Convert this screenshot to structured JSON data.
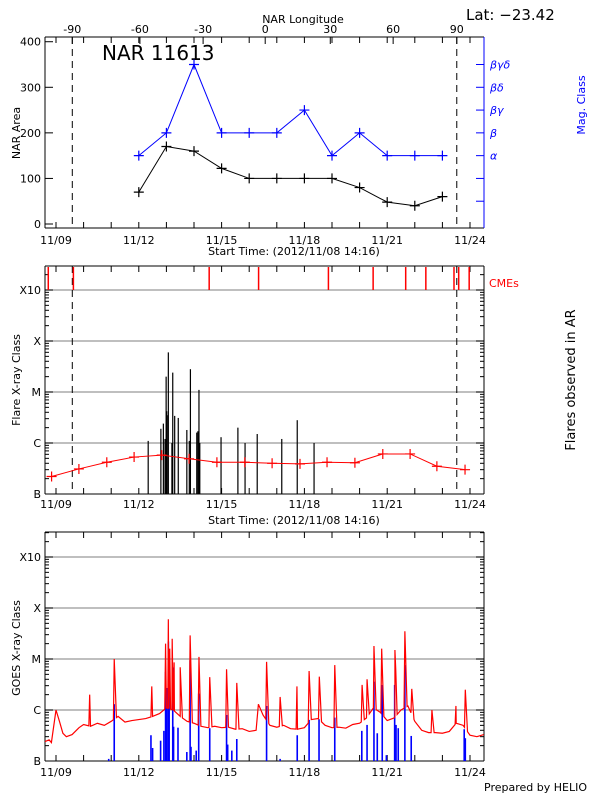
{
  "header": {
    "lat_label": "Lat: −23.42",
    "top_axis_title": "NAR Longitude",
    "region_title": "NAR 11613",
    "footer": "Prepared by HELIO"
  },
  "colors": {
    "area": "#000000",
    "mag_class": "#0000ff",
    "cme": "#ff0000",
    "flare_mean": "#ff0000",
    "flare_bars": "#000000",
    "goes_long": "#ff0000",
    "goes_short": "#0000ff",
    "grid": "#999999"
  },
  "chart_data": [
    {
      "type": "line",
      "panel": "area",
      "title": "NAR 11613",
      "xlabel": "Start Time: (2012/11/08 14:16)",
      "ylabel": "NAR Area",
      "y2label": "Mag. Class",
      "x_top_label": "NAR Longitude",
      "ylim": [
        0,
        400
      ],
      "xlim": [
        "11/08 14:16",
        "11/24 12:00"
      ],
      "yticks": [
        0,
        100,
        200,
        300,
        400
      ],
      "xticks": [
        "11/09",
        "11/12",
        "11/15",
        "11/18",
        "11/21",
        "11/24"
      ],
      "top_ticks": [
        {
          "label": "-90",
          "date": "11/09 14:10"
        },
        {
          "label": "-60",
          "date": "11/12 00:58"
        },
        {
          "label": "-30",
          "date": "11/14 07:55"
        },
        {
          "label": "0",
          "date": "11/16 13:55"
        },
        {
          "label": "30",
          "date": "11/18 22:30"
        },
        {
          "label": "60",
          "date": "11/21 05:10"
        },
        {
          "label": "90",
          "date": "11/23 12:30"
        }
      ],
      "limb_lines": [
        "11/09 14:10",
        "11/23 12:30"
      ],
      "mag_class_axis": [
        {
          "label": "",
          "at": 50
        },
        {
          "label": "",
          "at": 100
        },
        {
          "label": "α",
          "at": 150
        },
        {
          "label": "β",
          "at": 200
        },
        {
          "label": "βγ",
          "at": 250
        },
        {
          "label": "βδ",
          "at": 300
        },
        {
          "label": "βγδ",
          "at": 350
        }
      ],
      "dates": [
        "11/12 00:00",
        "11/13 00:00",
        "11/14 00:00",
        "11/15 00:00",
        "11/16 00:00",
        "11/17 00:00",
        "11/18 00:00",
        "11/19 00:00",
        "11/20 00:00",
        "11/21 00:00",
        "11/22 00:00",
        "11/23 00:00"
      ],
      "series": [
        {
          "name": "NAR Area",
          "values": [
            70,
            170,
            160,
            122,
            100,
            100,
            100,
            100,
            80,
            48,
            40,
            60
          ]
        },
        {
          "name": "Mag. Class",
          "values": [
            "α",
            "β",
            "βγδ",
            "β",
            "β",
            "β",
            "βγ",
            "α",
            "β",
            "α",
            "α",
            "α"
          ]
        }
      ]
    },
    {
      "type": "bar",
      "panel": "flares",
      "xlabel": "Start Time: (2012/11/08 14:16)",
      "ylabel": "Flare X-ray Class",
      "y2label": "Flares observed in AR",
      "cme_label": "CMEs",
      "yscale": "log",
      "ylim": [
        "B1.0",
        "X10+"
      ],
      "yticks": [
        "B",
        "C",
        "M",
        "X",
        "X10"
      ],
      "xticks": [
        "11/09",
        "11/12",
        "11/15",
        "11/18",
        "11/21",
        "11/24"
      ],
      "grid": true,
      "limb_lines": [
        "11/09 14:10",
        "11/23 12:30"
      ],
      "cmes": [
        "11/08 17:17",
        "11/09 15:07",
        "11/14 13:12",
        "11/16 08:10",
        "11/18 20:53",
        "11/20 11:46",
        "11/21 16:05",
        "11/22 09:36",
        "11/23 10:05",
        "11/23 14:10",
        "11/23 23:17"
      ],
      "flares": [
        [
          "11/12 08:10",
          "C1.1"
        ],
        [
          "11/12 19:12",
          "C1.9"
        ],
        [
          "11/12 21:22",
          "C2.4"
        ],
        [
          "11/12 22:48",
          "C1.2"
        ],
        [
          "11/12 23:46",
          "M2.0"
        ],
        [
          "11/13 00:14",
          "C4.2"
        ],
        [
          "11/13 01:12",
          "C3.5"
        ],
        [
          "11/13 01:41",
          "M6.0"
        ],
        [
          "11/13 04:48",
          "C1.0"
        ],
        [
          "11/13 05:31",
          "M2.4"
        ],
        [
          "11/13 07:12",
          "C3.4"
        ],
        [
          "11/13 10:19",
          "C3.1"
        ],
        [
          "11/13 17:46",
          "C1.8"
        ],
        [
          "11/13 19:55",
          "C1.1"
        ],
        [
          "11/13 20:53",
          "M2.8"
        ],
        [
          "11/14 02:24",
          "C1.6"
        ],
        [
          "11/14 03:22",
          "C1.7"
        ],
        [
          "11/14 04:19",
          "M1.1"
        ],
        [
          "11/14 05:02",
          "C1.0"
        ],
        [
          "11/14 23:31",
          "C1.3"
        ],
        [
          "11/14 23:46",
          "B1.2"
        ],
        [
          "11/15 14:10",
          "C2.0"
        ],
        [
          "11/15 20:24",
          "C1.0"
        ],
        [
          "11/16 06:58",
          "C1.5"
        ],
        [
          "11/17 04:19",
          "C1.2"
        ],
        [
          "11/17 17:46",
          "C2.8"
        ],
        [
          "11/18 08:24",
          "C1.0"
        ]
      ],
      "daily_mean": [
        [
          "11/08 20:10",
          "B2.2"
        ],
        [
          "11/09 19:55",
          "B3.1"
        ],
        [
          "11/10 20:10",
          "B4.2"
        ],
        [
          "11/11 19:55",
          "B5.3"
        ],
        [
          "11/12 19:55",
          "B5.8"
        ],
        [
          "11/13 19:41",
          "B4.9"
        ],
        [
          "11/14 19:55",
          "B4.2"
        ],
        [
          "11/15 20:10",
          "B4.2"
        ],
        [
          "11/16 19:55",
          "B4.0"
        ],
        [
          "11/17 20:10",
          "B3.9"
        ],
        [
          "11/18 19:41",
          "B4.2"
        ],
        [
          "11/19 19:55",
          "B4.1"
        ],
        [
          "11/20 20:10",
          "B6.1"
        ],
        [
          "11/21 19:55",
          "B6.1"
        ],
        [
          "11/22 19:12",
          "B3.5"
        ],
        [
          "11/23 19:41",
          "B3.0"
        ]
      ]
    },
    {
      "type": "line",
      "panel": "goes",
      "ylabel": "GOES X-ray Class",
      "yscale": "log",
      "ylim": [
        "B1.0",
        "X10+"
      ],
      "yticks": [
        "B",
        "C",
        "M",
        "X",
        "X10"
      ],
      "xticks": [
        "11/09",
        "11/12",
        "11/15",
        "11/18",
        "11/21",
        "11/24"
      ],
      "grid": true,
      "long_channel_background": [
        [
          "11/08 14:16",
          "B2.4"
        ],
        [
          "11/08 18:00",
          "B2.6"
        ],
        [
          "11/08 20:00",
          "B2.3"
        ],
        [
          "11/09 00:00",
          "C1.0"
        ],
        [
          "11/09 03:00",
          "B6.0"
        ],
        [
          "11/09 06:00",
          "B3.5"
        ],
        [
          "11/09 09:00",
          "B3.0"
        ],
        [
          "11/09 14:00",
          "B3.3"
        ],
        [
          "11/09 20:00",
          "B4.5"
        ],
        [
          "11/10 00:00",
          "B5.2"
        ],
        [
          "11/10 06:00",
          "B4.8"
        ],
        [
          "11/10 12:00",
          "B5.5"
        ],
        [
          "11/10 18:00",
          "B5.0"
        ],
        [
          "11/11 00:00",
          "B6.0"
        ],
        [
          "11/11 06:00",
          "B7.5"
        ],
        [
          "11/11 12:00",
          "B5.8"
        ],
        [
          "11/11 18:00",
          "B6.2"
        ],
        [
          "11/12 00:00",
          "B6.5"
        ],
        [
          "11/12 06:00",
          "B6.8"
        ],
        [
          "11/12 12:00",
          "B7.5"
        ],
        [
          "11/12 18:00",
          "B8.5"
        ],
        [
          "11/13 00:00",
          "C1.1"
        ],
        [
          "11/13 06:00",
          "C1.0"
        ],
        [
          "11/13 12:00",
          "B7.5"
        ],
        [
          "11/13 18:00",
          "B6.0"
        ],
        [
          "11/14 00:00",
          "B5.5"
        ],
        [
          "11/14 06:00",
          "B4.8"
        ],
        [
          "11/14 12:00",
          "B4.5"
        ],
        [
          "11/14 18:00",
          "B4.8"
        ],
        [
          "11/15 00:00",
          "B4.5"
        ],
        [
          "11/15 06:00",
          "B4.6"
        ],
        [
          "11/15 12:00",
          "B4.2"
        ],
        [
          "11/15 18:00",
          "B4.3"
        ],
        [
          "11/16 00:00",
          "B3.8"
        ],
        [
          "11/16 06:00",
          "B4.0"
        ],
        [
          "11/16 08:00",
          "C1.3"
        ],
        [
          "11/16 12:00",
          "B8.0"
        ],
        [
          "11/16 18:00",
          "B5.0"
        ],
        [
          "11/17 00:00",
          "B4.6"
        ],
        [
          "11/17 06:00",
          "B5.0"
        ],
        [
          "11/17 12:00",
          "B4.3"
        ],
        [
          "11/17 18:00",
          "B4.2"
        ],
        [
          "11/18 00:00",
          "B4.5"
        ],
        [
          "11/18 06:00",
          "B6.5"
        ],
        [
          "11/18 12:00",
          "B6.8"
        ],
        [
          "11/18 18:00",
          "B5.0"
        ],
        [
          "11/19 00:00",
          "B4.5"
        ],
        [
          "11/19 06:00",
          "B4.6"
        ],
        [
          "11/19 12:00",
          "B4.4"
        ],
        [
          "11/19 18:00",
          "B5.2"
        ],
        [
          "11/20 00:00",
          "B5.5"
        ],
        [
          "11/20 06:00",
          "B7.0"
        ],
        [
          "11/20 12:00",
          "C1.1"
        ],
        [
          "11/20 18:00",
          "B9.0"
        ],
        [
          "11/21 00:00",
          "B6.2"
        ],
        [
          "11/21 06:00",
          "B7.0"
        ],
        [
          "11/21 12:00",
          "C1.0"
        ],
        [
          "11/21 18:00",
          "C1.2"
        ],
        [
          "11/22 00:00",
          "B6.0"
        ],
        [
          "11/22 06:00",
          "B4.0"
        ],
        [
          "11/22 12:00",
          "B3.6"
        ],
        [
          "11/22 18:00",
          "B3.6"
        ],
        [
          "11/23 00:00",
          "B3.5"
        ],
        [
          "11/23 06:00",
          "B3.8"
        ],
        [
          "11/23 12:00",
          "B5.5"
        ],
        [
          "11/23 18:00",
          "B5.0"
        ],
        [
          "11/24 00:00",
          "B3.2"
        ],
        [
          "11/24 06:00",
          "B3.0"
        ],
        [
          "11/24 12:00",
          "B3.3"
        ]
      ],
      "long_channel_peaks": [
        [
          "11/10 05:17",
          "C2.0"
        ],
        [
          "11/11 02:38",
          "M1.0"
        ],
        [
          "11/12 11:17",
          "C2.9"
        ],
        [
          "11/12 23:17",
          "M2.0"
        ],
        [
          "11/13 01:41",
          "M6.0"
        ],
        [
          "11/13 02:53",
          "M1.6"
        ],
        [
          "11/13 05:02",
          "M2.5"
        ],
        [
          "11/13 06:43",
          "C8.6"
        ],
        [
          "11/13 12:00",
          "C6.9"
        ],
        [
          "11/13 20:38",
          "M2.9"
        ],
        [
          "11/14 04:19",
          "M1.1"
        ],
        [
          "11/14 13:41",
          "C4.4"
        ],
        [
          "11/15 04:19",
          "C6.3"
        ],
        [
          "11/15 13:12",
          "C3.4"
        ],
        [
          "11/16 15:07",
          "C8.8"
        ],
        [
          "11/17 02:53",
          "C1.8"
        ],
        [
          "11/17 17:31",
          "C2.9"
        ],
        [
          "11/18 04:05",
          "C5.8"
        ],
        [
          "11/18 12:58",
          "C4.5"
        ],
        [
          "11/19 02:24",
          "C7.6"
        ],
        [
          "11/20 02:10",
          "C3.1"
        ],
        [
          "11/20 06:29",
          "C4.0"
        ],
        [
          "11/20 12:29",
          "M1.8"
        ],
        [
          "11/20 19:12",
          "M1.6"
        ],
        [
          "11/21 06:43",
          "M1.5"
        ],
        [
          "11/21 07:26",
          "C6.2"
        ],
        [
          "11/21 15:22",
          "M3.5"
        ],
        [
          "11/21 21:22",
          "C2.6"
        ],
        [
          "11/22 14:53",
          "C1.0"
        ],
        [
          "11/23 11:46",
          "C1.2"
        ],
        [
          "11/23 19:55",
          "C2.5"
        ]
      ],
      "short_channel_peaks": [
        [
          "11/10 21:50",
          "B1.1"
        ],
        [
          "11/11 02:38",
          "C1.3"
        ],
        [
          "11/12 10:34",
          "B3.2"
        ],
        [
          "11/12 12:00",
          "B1.8"
        ],
        [
          "11/12 18:58",
          "B2.5"
        ],
        [
          "11/12 21:50",
          "B3.9"
        ],
        [
          "11/12 23:17",
          "C5.6"
        ],
        [
          "11/13 00:14",
          "C2.7"
        ],
        [
          "11/13 01:41",
          "M2.2"
        ],
        [
          "11/13 02:24",
          "C2.7"
        ],
        [
          "11/13 05:31",
          "C6.8"
        ],
        [
          "11/13 06:14",
          "B4.7"
        ],
        [
          "11/13 10:05",
          "B4.5"
        ],
        [
          "11/13 17:46",
          "B1.5"
        ],
        [
          "11/13 20:38",
          "C9.4"
        ],
        [
          "11/13 21:22",
          "B1.9"
        ],
        [
          "11/14 01:55",
          "B1.6"
        ],
        [
          "11/14 04:05",
          "C2.1"
        ],
        [
          "11/14 13:41",
          "B4.4"
        ],
        [
          "11/15 04:19",
          "B8.0"
        ],
        [
          "11/15 05:17",
          "B2.1"
        ],
        [
          "11/15 08:53",
          "B1.6"
        ],
        [
          "11/15 13:12",
          "B2.7"
        ],
        [
          "11/16 15:07",
          "C1.2"
        ],
        [
          "11/17 02:53",
          "B1.1"
        ],
        [
          "11/17 17:46",
          "B3.2"
        ],
        [
          "11/18 04:05",
          "B6.4"
        ],
        [
          "11/18 12:43",
          "B6.6"
        ],
        [
          "11/19 02:24",
          "B7.1"
        ],
        [
          "11/20 01:55",
          "B3.9"
        ],
        [
          "11/20 06:29",
          "B5.1"
        ],
        [
          "11/20 12:29",
          "C3.6"
        ],
        [
          "11/20 15:22",
          "B3.5"
        ],
        [
          "11/20 19:41",
          "C3.1"
        ],
        [
          "11/20 23:17",
          "B1.3"
        ],
        [
          "11/21 06:29",
          "C3.1"
        ],
        [
          "11/21 07:41",
          "B5.1"
        ],
        [
          "11/21 09:36",
          "B4.4"
        ],
        [
          "11/21 15:22",
          "C7.6"
        ],
        [
          "11/21 20:53",
          "B3.1"
        ],
        [
          "11/23 18:58",
          "B4.2"
        ],
        [
          "11/23 19:55",
          "B2.8"
        ]
      ]
    }
  ]
}
